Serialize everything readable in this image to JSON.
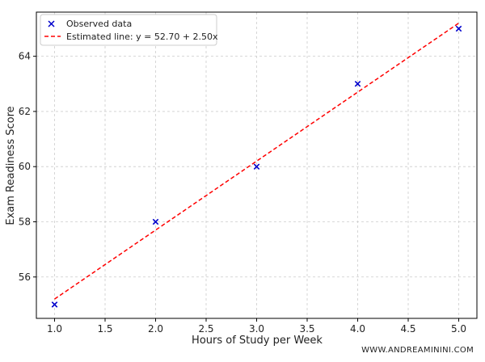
{
  "chart_data": {
    "type": "scatter",
    "xlabel": "Hours of Study per Week",
    "ylabel": "Exam Readiness Score",
    "xlim": [
      0.82,
      5.18
    ],
    "ylim": [
      54.5,
      65.6
    ],
    "xticks": [
      1.0,
      1.5,
      2.0,
      2.5,
      3.0,
      3.5,
      4.0,
      4.5,
      5.0
    ],
    "xtick_labels": [
      "1.0",
      "1.5",
      "2.0",
      "2.5",
      "3.0",
      "3.5",
      "4.0",
      "4.5",
      "5.0"
    ],
    "yticks": [
      56,
      58,
      60,
      62,
      64
    ],
    "ytick_labels": [
      "56",
      "58",
      "60",
      "62",
      "64"
    ],
    "grid": true,
    "legend_position": "top-left",
    "series": [
      {
        "name": "Observed data",
        "kind": "scatter",
        "marker": "x",
        "color": "#0000cc",
        "x": [
          1,
          2,
          3,
          4,
          5
        ],
        "y": [
          55,
          58,
          60,
          63,
          65
        ]
      },
      {
        "name": "Estimated line: y = 52.70 + 2.50x",
        "kind": "line",
        "style": "dashed",
        "color": "#ff0000",
        "intercept": 52.7,
        "slope": 2.5,
        "x": [
          1,
          5
        ],
        "y": [
          55.2,
          65.2
        ]
      }
    ]
  },
  "watermark": "WWW.ANDREAMININI.COM"
}
